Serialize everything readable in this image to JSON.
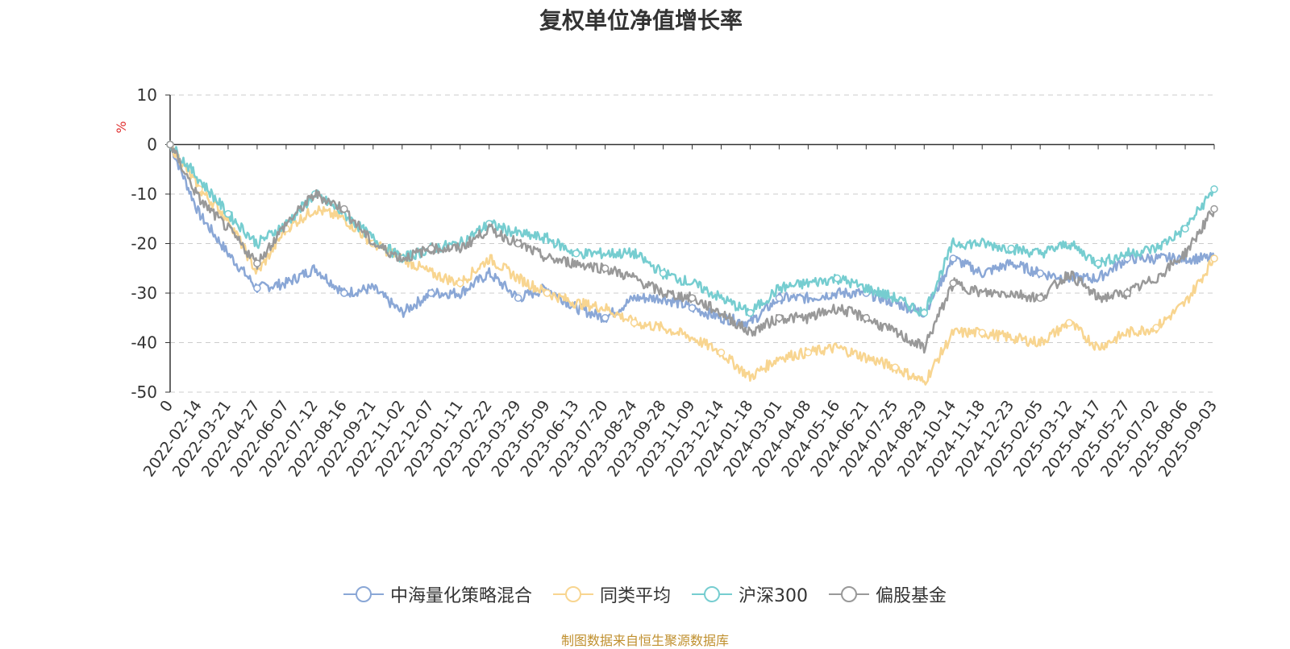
{
  "title": "复权单位净值增长率",
  "source": "制图数据来自恒生聚源数据库",
  "chart_data": {
    "type": "line",
    "title": "复权单位净值增长率",
    "ylabel": "%",
    "ylim": [
      -50,
      10
    ],
    "yticks": [
      10,
      0,
      -10,
      -20,
      -30,
      -40,
      -50
    ],
    "grid": true,
    "legend_position": "bottom-center",
    "categories": [
      "0",
      "2022-02-14",
      "2022-03-21",
      "2022-04-27",
      "2022-06-07",
      "2022-07-12",
      "2022-08-16",
      "2022-09-21",
      "2022-11-02",
      "2022-12-07",
      "2023-01-11",
      "2023-02-22",
      "2023-03-29",
      "2023-05-09",
      "2023-06-13",
      "2023-07-20",
      "2023-08-24",
      "2023-09-28",
      "2023-11-09",
      "2023-12-14",
      "2024-01-18",
      "2024-03-01",
      "2024-04-08",
      "2024-05-16",
      "2024-06-21",
      "2024-07-25",
      "2024-08-29",
      "2024-10-14",
      "2024-11-18",
      "2024-12-23",
      "2025-02-05",
      "2025-03-12",
      "2025-04-17",
      "2025-05-27",
      "2025-07-02",
      "2025-08-06",
      "2025-09-03"
    ],
    "series": [
      {
        "name": "中海量化策略混合",
        "color": "#8aa7d6",
        "values": [
          0,
          -14,
          -22,
          -29,
          -28,
          -25,
          -30,
          -29,
          -34,
          -30,
          -30,
          -26,
          -31,
          -29,
          -33,
          -35,
          -31,
          -31,
          -33,
          -35,
          -36,
          -31,
          -31,
          -30,
          -30,
          -32,
          -34,
          -23,
          -26,
          -24,
          -26,
          -27,
          -27,
          -23,
          -23,
          -23,
          -23
        ]
      },
      {
        "name": "同类平均",
        "color": "#f8d590",
        "values": [
          0,
          -9,
          -15,
          -26,
          -17,
          -13,
          -15,
          -20,
          -23,
          -26,
          -28,
          -23,
          -27,
          -30,
          -32,
          -33,
          -36,
          -37,
          -39,
          -42,
          -47,
          -43,
          -42,
          -41,
          -43,
          -45,
          -48,
          -38,
          -38,
          -39,
          -40,
          -36,
          -41,
          -38,
          -37,
          -32,
          -23
        ]
      },
      {
        "name": "沪深300",
        "color": "#76cdd0",
        "values": [
          0,
          -7,
          -14,
          -20,
          -16,
          -10,
          -14,
          -19,
          -23,
          -21,
          -20,
          -16,
          -18,
          -19,
          -22,
          -22,
          -22,
          -26,
          -28,
          -31,
          -34,
          -29,
          -28,
          -27,
          -29,
          -31,
          -34,
          -20,
          -20,
          -21,
          -22,
          -20,
          -24,
          -22,
          -21,
          -17,
          -9
        ]
      },
      {
        "name": "偏股基金",
        "color": "#999999",
        "values": [
          0,
          -11,
          -17,
          -24,
          -16,
          -10,
          -13,
          -20,
          -23,
          -21,
          -21,
          -17,
          -20,
          -23,
          -24,
          -25,
          -27,
          -30,
          -31,
          -34,
          -38,
          -35,
          -35,
          -33,
          -35,
          -38,
          -41,
          -28,
          -30,
          -30,
          -31,
          -26,
          -31,
          -30,
          -27,
          -22,
          -13
        ]
      }
    ]
  }
}
